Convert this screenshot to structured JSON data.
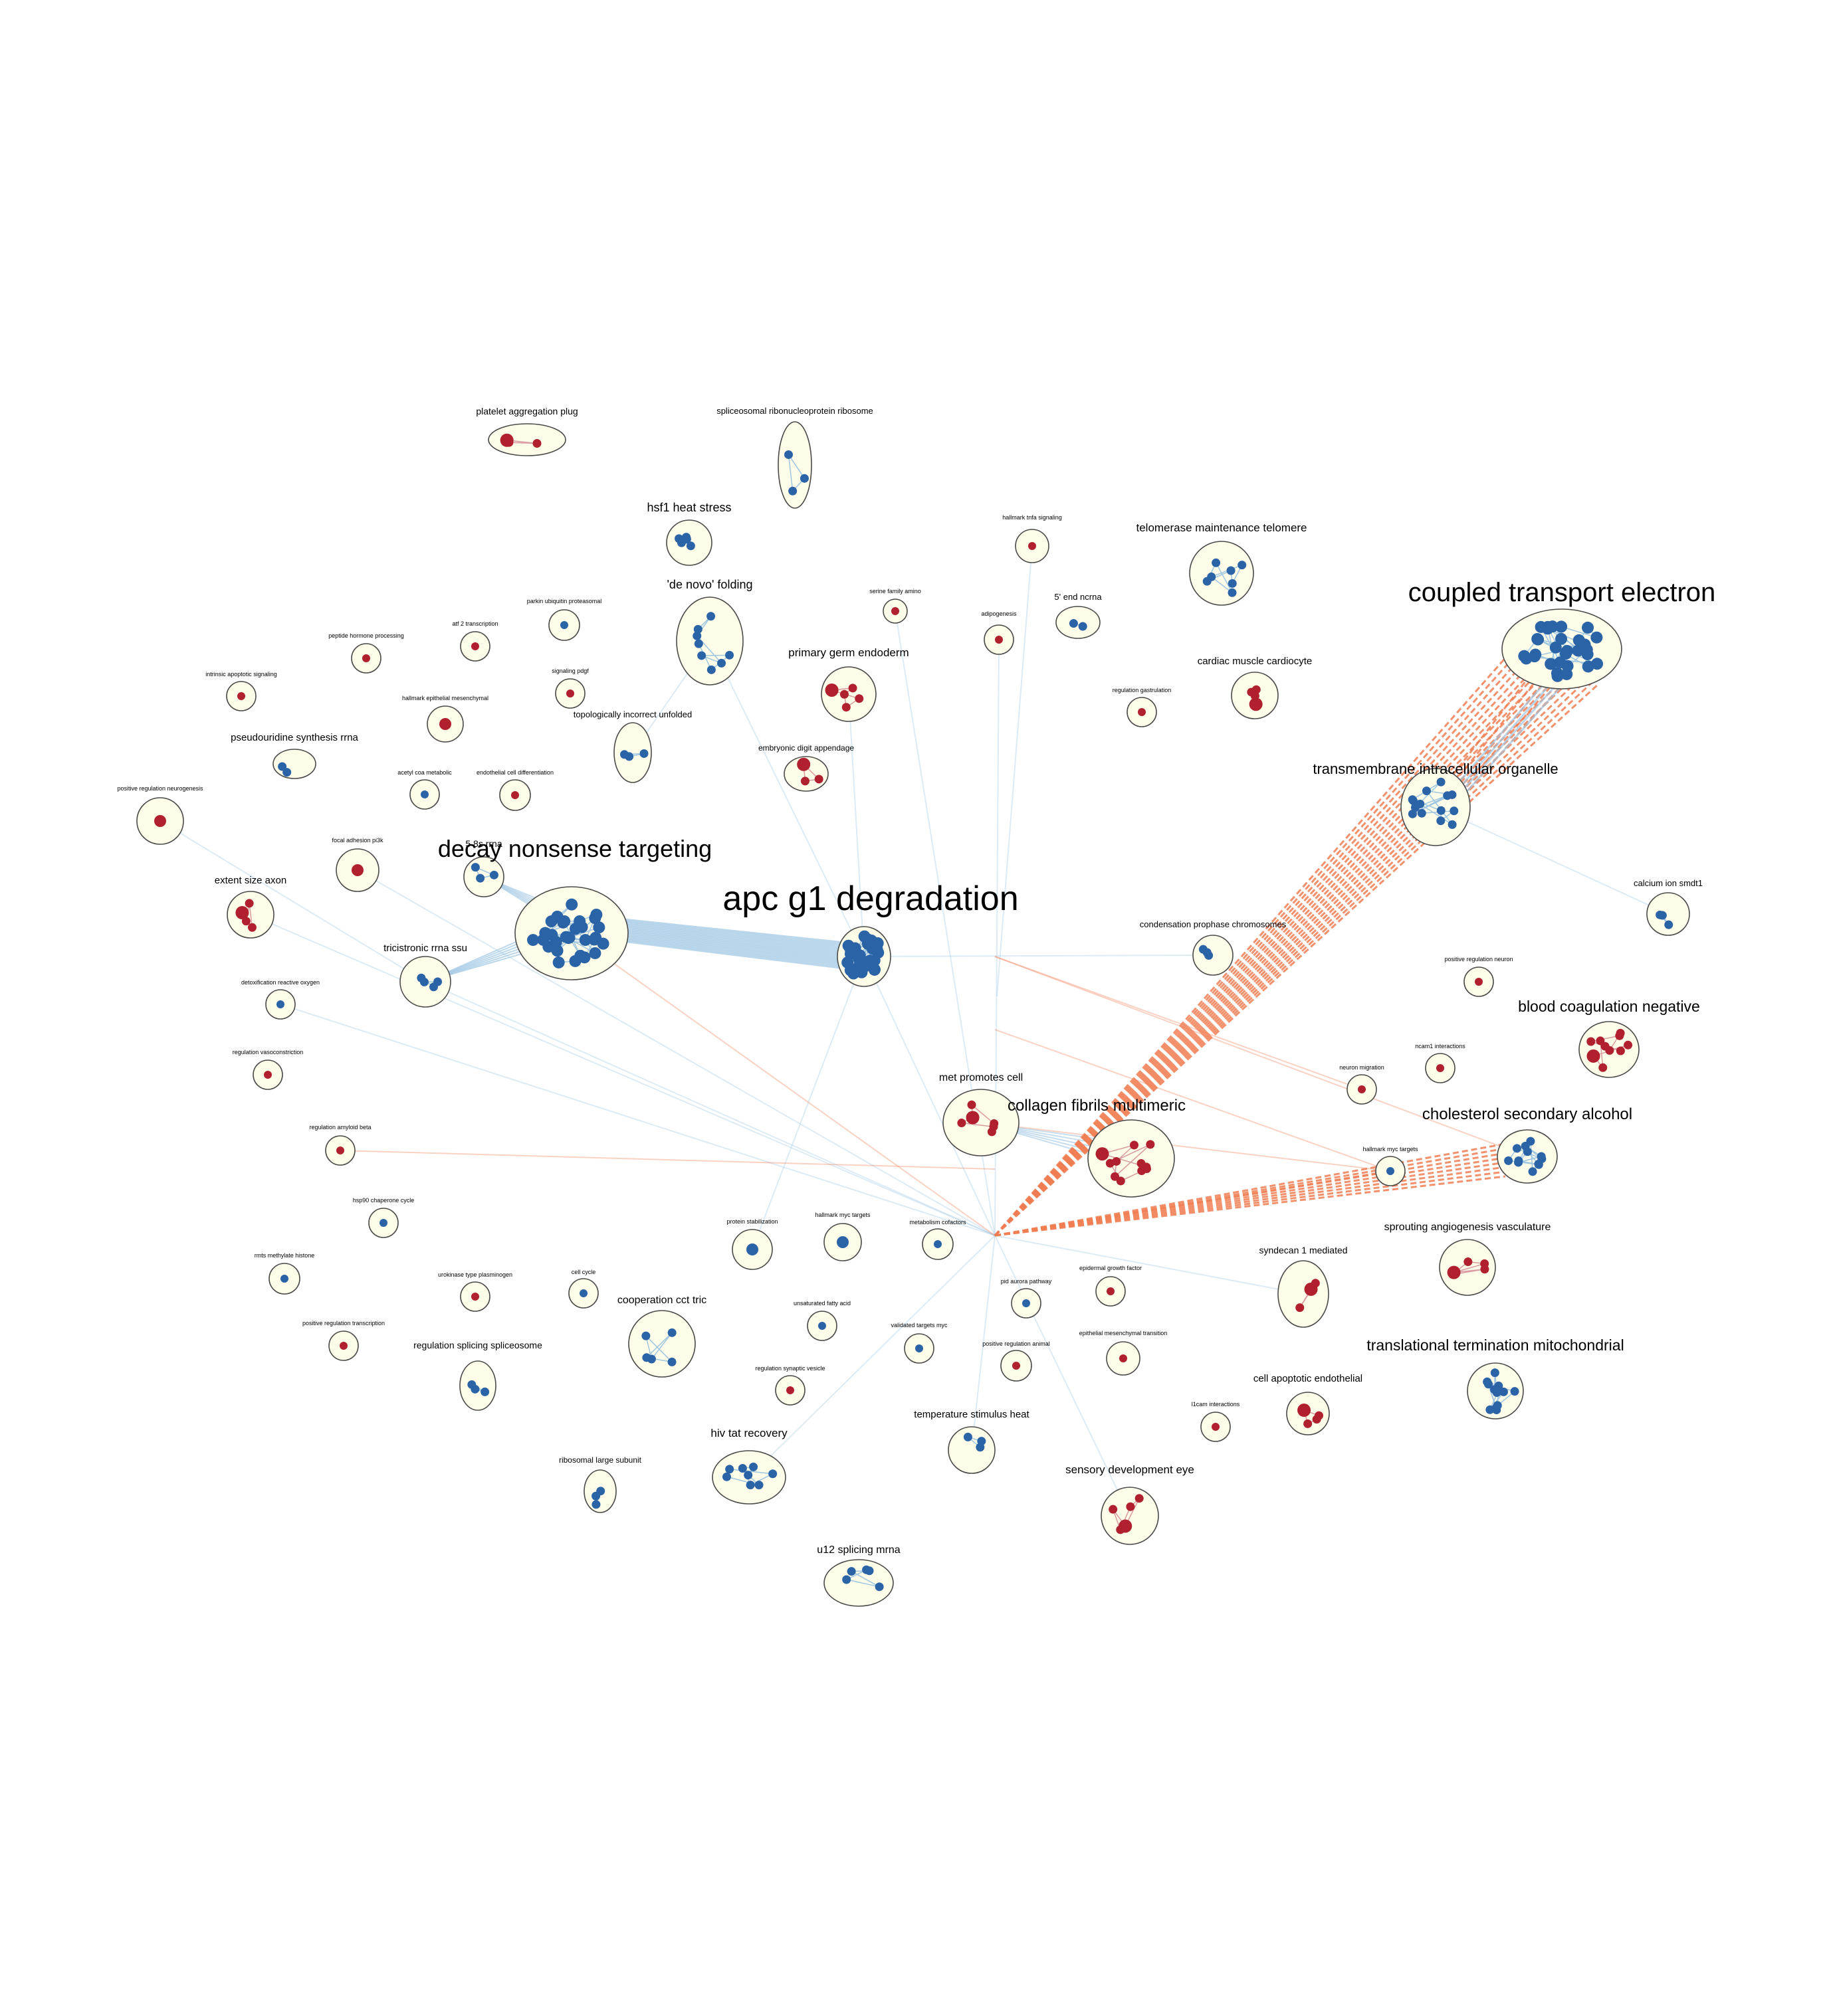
{
  "colors": {
    "cluster_fill": "#fcfce8",
    "cluster_stroke": "#4a4a4a",
    "node_blue": "#2a63a6",
    "node_red": "#b0202e",
    "edge_blue": "#9ec6e2",
    "edge_orange": "#f07e52"
  },
  "clusters": [
    {
      "label": "platelet aggregation plug",
      "type": "red",
      "nodes": 3
    },
    {
      "label": "spliceosomal ribonucleoprotein ribosome",
      "type": "blue",
      "nodes": 3
    },
    {
      "label": "hsf1 heat stress",
      "type": "blue",
      "nodes": 5
    },
    {
      "label": "hallmark tnfa signaling",
      "type": "red",
      "nodes": 1
    },
    {
      "label": "telomerase maintenance telomere",
      "type": "blue",
      "nodes": 7
    },
    {
      "label": "'de novo' folding",
      "type": "blue",
      "nodes": 8
    },
    {
      "label": "serine family amino",
      "type": "red",
      "nodes": 1
    },
    {
      "label": "adipogenesis",
      "type": "red",
      "nodes": 1
    },
    {
      "label": "5' end ncrna",
      "type": "blue",
      "nodes": 2
    },
    {
      "label": "coupled transport electron",
      "type": "blue",
      "nodes": 30
    },
    {
      "label": "parkin ubiquitin proteasomal",
      "type": "blue",
      "nodes": 1
    },
    {
      "label": "atf 2 transcription",
      "type": "red",
      "nodes": 1
    },
    {
      "label": "peptide hormone processing",
      "type": "red",
      "nodes": 1
    },
    {
      "label": "intrinsic apoptotic signaling",
      "type": "red",
      "nodes": 1
    },
    {
      "label": "signaling pdgf",
      "type": "red",
      "nodes": 1
    },
    {
      "label": "hallmark epithelial mesenchymal",
      "type": "red",
      "nodes": 1
    },
    {
      "label": "primary germ endoderm",
      "type": "red",
      "nodes": 5
    },
    {
      "label": "regulation gastrulation",
      "type": "red",
      "nodes": 1
    },
    {
      "label": "cardiac muscle cardiocyte",
      "type": "red",
      "nodes": 4
    },
    {
      "label": "topologically incorrect unfolded",
      "type": "blue",
      "nodes": 3
    },
    {
      "label": "pseudouridine synthesis rrna",
      "type": "blue",
      "nodes": 2
    },
    {
      "label": "embryonic digit appendage",
      "type": "red",
      "nodes": 3
    },
    {
      "label": "acetyl coa metabolic",
      "type": "blue",
      "nodes": 1
    },
    {
      "label": "endothelial cell differentiation",
      "type": "red",
      "nodes": 1
    },
    {
      "label": "positive regulation neurogenesis",
      "type": "red",
      "nodes": 1
    },
    {
      "label": "transmembrane intracellular organelle",
      "type": "blue",
      "nodes": 14
    },
    {
      "label": "focal adhesion pi3k",
      "type": "red",
      "nodes": 1
    },
    {
      "label": "5 8s rrna",
      "type": "blue",
      "nodes": 3
    },
    {
      "label": "decay nonsense targeting",
      "type": "blue",
      "nodes": 30
    },
    {
      "label": "extent size axon",
      "type": "red",
      "nodes": 4
    },
    {
      "label": "apc g1 degradation",
      "type": "blue",
      "nodes": 30
    },
    {
      "label": "calcium ion smdt1",
      "type": "blue",
      "nodes": 3
    },
    {
      "label": "condensation prophase chromosomes",
      "type": "blue",
      "nodes": 3
    },
    {
      "label": "tricistronic rrna ssu",
      "type": "blue",
      "nodes": 4
    },
    {
      "label": "positive regulation neuron",
      "type": "red",
      "nodes": 1
    },
    {
      "label": "detoxification reactive oxygen",
      "type": "blue",
      "nodes": 1
    },
    {
      "label": "blood coagulation negative",
      "type": "red",
      "nodes": 10
    },
    {
      "label": "regulation vasoconstriction",
      "type": "red",
      "nodes": 1
    },
    {
      "label": "ncam1 interactions",
      "type": "red",
      "nodes": 1
    },
    {
      "label": "met promotes cell",
      "type": "red",
      "nodes": 6
    },
    {
      "label": "neuron migration",
      "type": "red",
      "nodes": 1
    },
    {
      "label": "collagen fibrils multimeric",
      "type": "red",
      "nodes": 12
    },
    {
      "label": "cholesterol secondary alcohol",
      "type": "blue",
      "nodes": 12
    },
    {
      "label": "hallmark myc targets",
      "type": "blue",
      "nodes": 1
    },
    {
      "label": "regulation amyloid beta",
      "type": "red",
      "nodes": 1
    },
    {
      "label": "hsp90 chaperone cycle",
      "type": "blue",
      "nodes": 1
    },
    {
      "label": "protein stabilization",
      "type": "blue",
      "nodes": 1
    },
    {
      "label": "hallmark myc targets",
      "type": "blue",
      "nodes": 1
    },
    {
      "label": "metabolism cofactors",
      "type": "blue",
      "nodes": 1
    },
    {
      "label": "sprouting angiogenesis vasculature",
      "type": "red",
      "nodes": 5
    },
    {
      "label": "syndecan 1 mediated",
      "type": "red",
      "nodes": 3
    },
    {
      "label": "rmts methylate histone",
      "type": "blue",
      "nodes": 1
    },
    {
      "label": "urokinase type plasminogen",
      "type": "red",
      "nodes": 1
    },
    {
      "label": "cell cycle",
      "type": "blue",
      "nodes": 1
    },
    {
      "label": "epidermal growth factor",
      "type": "red",
      "nodes": 1
    },
    {
      "label": "pid aurora pathway",
      "type": "blue",
      "nodes": 1
    },
    {
      "label": "cooperation cct tric",
      "type": "blue",
      "nodes": 5
    },
    {
      "label": "unsaturated fatty acid",
      "type": "blue",
      "nodes": 1
    },
    {
      "label": "positive regulation transcription",
      "type": "red",
      "nodes": 1
    },
    {
      "label": "validated targets myc",
      "type": "blue",
      "nodes": 1
    },
    {
      "label": "epithelial mesenchymal transition",
      "type": "red",
      "nodes": 1
    },
    {
      "label": "regulation splicing spliceosome",
      "type": "blue",
      "nodes": 3
    },
    {
      "label": "positive regulation animal",
      "type": "red",
      "nodes": 1
    },
    {
      "label": "translational termination mitochondrial",
      "type": "blue",
      "nodes": 13
    },
    {
      "label": "regulation synaptic vesicle",
      "type": "red",
      "nodes": 1
    },
    {
      "label": "cell apoptotic endothelial",
      "type": "red",
      "nodes": 4
    },
    {
      "label": "l1cam interactions",
      "type": "red",
      "nodes": 1
    },
    {
      "label": "temperature stimulus heat",
      "type": "blue",
      "nodes": 3
    },
    {
      "label": "hiv tat recovery",
      "type": "blue",
      "nodes": 8
    },
    {
      "label": "ribosomal large subunit",
      "type": "blue",
      "nodes": 3
    },
    {
      "label": "sensory development eye",
      "type": "red",
      "nodes": 5
    },
    {
      "label": "u12 splicing mrna",
      "type": "blue",
      "nodes": 5
    }
  ]
}
